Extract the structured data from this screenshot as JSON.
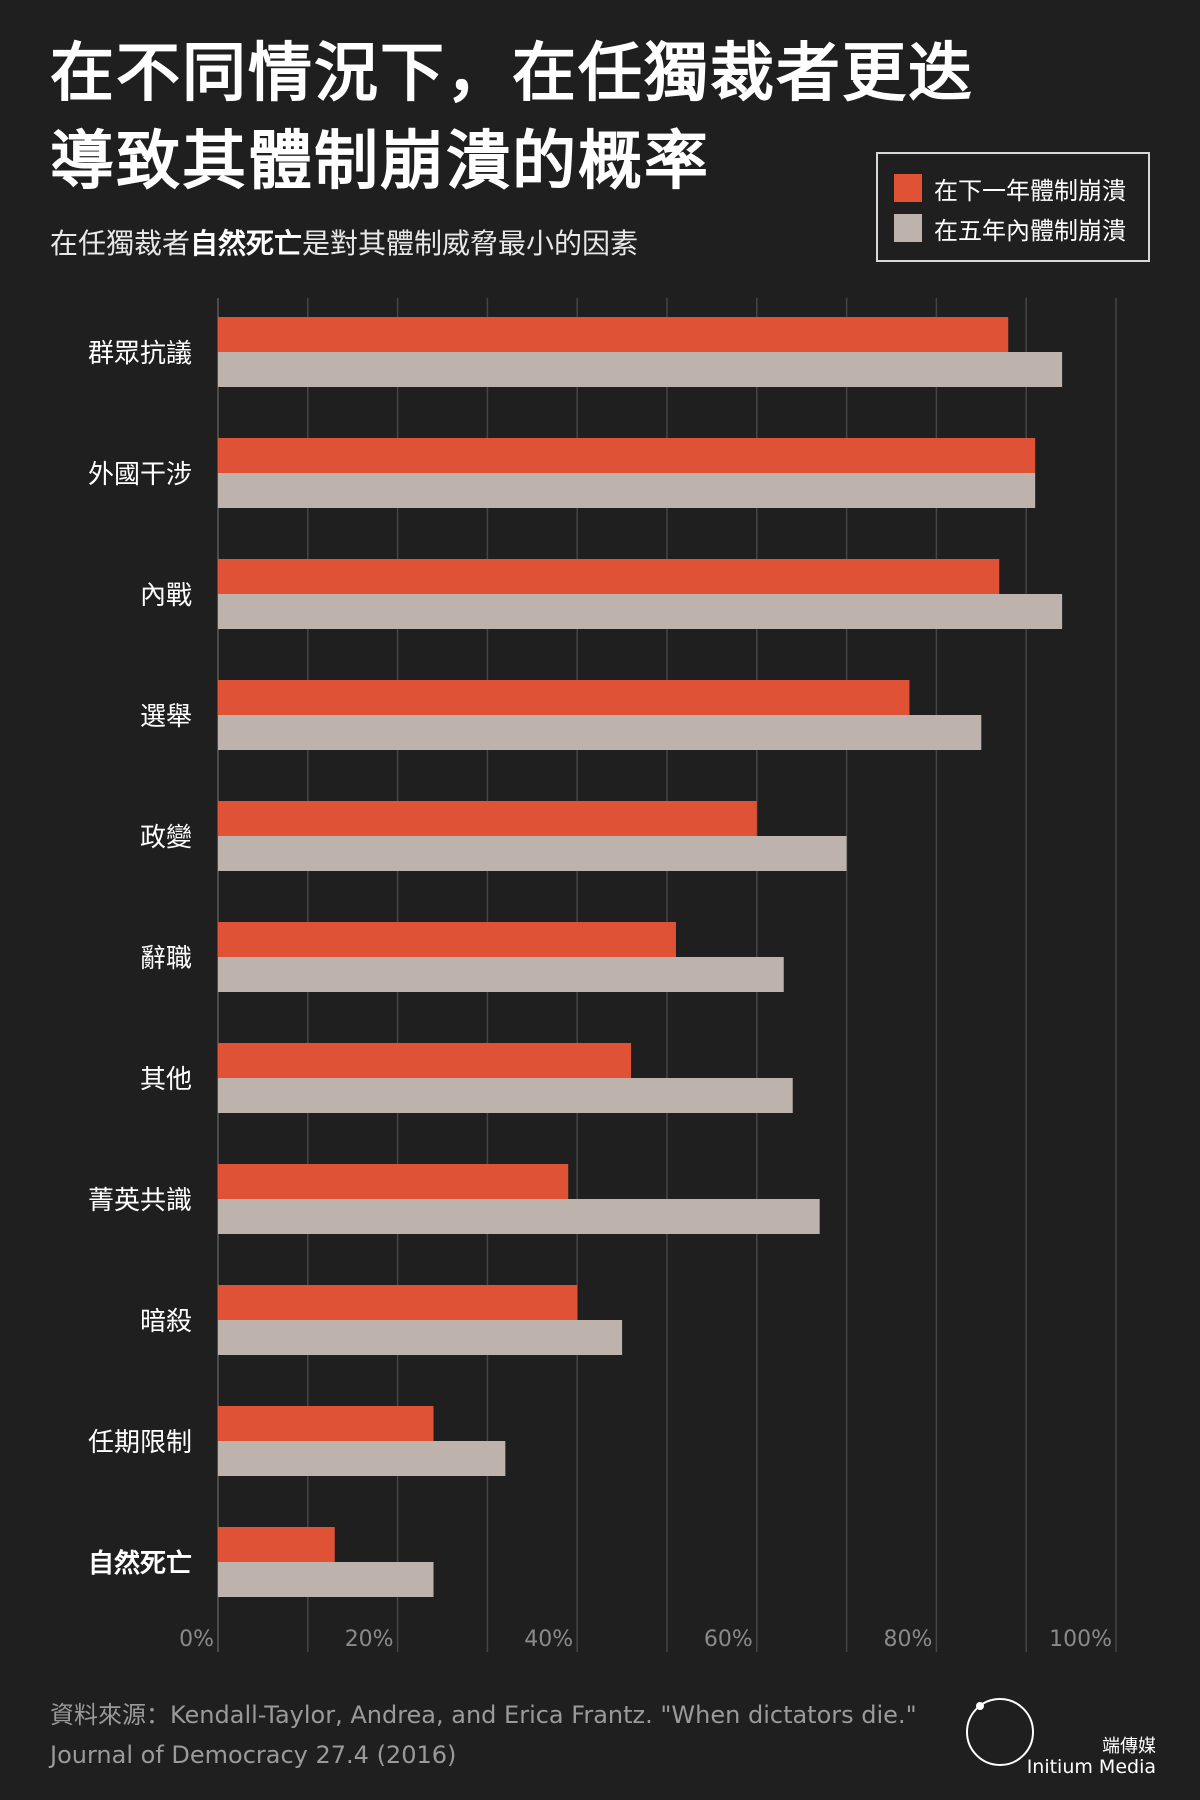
{
  "title": [
    "在不同情況下，在任獨裁者更迭",
    "導致其體制崩潰的概率"
  ],
  "subtitle": {
    "before": "在任獨裁者",
    "emphasis": "自然死亡",
    "after": "是對其體制威脅最小的因素"
  },
  "legend": [
    {
      "label": "在下一年體制崩潰",
      "color": "#e05236"
    },
    {
      "label": "在五年內體制崩潰",
      "color": "#bdb3ac"
    }
  ],
  "chart_data": {
    "type": "bar",
    "orientation": "horizontal",
    "categories": [
      "群眾抗議",
      "外國干涉",
      "內戰",
      "選舉",
      "政變",
      "辭職",
      "其他",
      "菁英共識",
      "暗殺",
      "任期限制",
      "自然死亡"
    ],
    "emphasized_category": "自然死亡",
    "series": [
      {
        "name": "在下一年體制崩潰",
        "color": "#e05236",
        "values": [
          88,
          91,
          87,
          77,
          60,
          51,
          46,
          39,
          40,
          24,
          13
        ]
      },
      {
        "name": "在五年內體制崩潰",
        "color": "#bdb3ac",
        "values": [
          94,
          91,
          94,
          85,
          70,
          63,
          64,
          67,
          45,
          32,
          24
        ]
      }
    ],
    "xlim": [
      0,
      100
    ],
    "xticks": [
      "0%",
      "20%",
      "40%",
      "60%",
      "80%",
      "100%"
    ],
    "grid": true,
    "legend_position": "top-right"
  },
  "source": "資料來源：Kendall-Taylor, Andrea, and Erica Frantz. \"When dictators die.\" Journal of Democracy 27.4 (2016)",
  "brand": {
    "name_cn": "端傳媒",
    "name_en": "Initium Media",
    "logo_glyph": "l山\nl而"
  }
}
